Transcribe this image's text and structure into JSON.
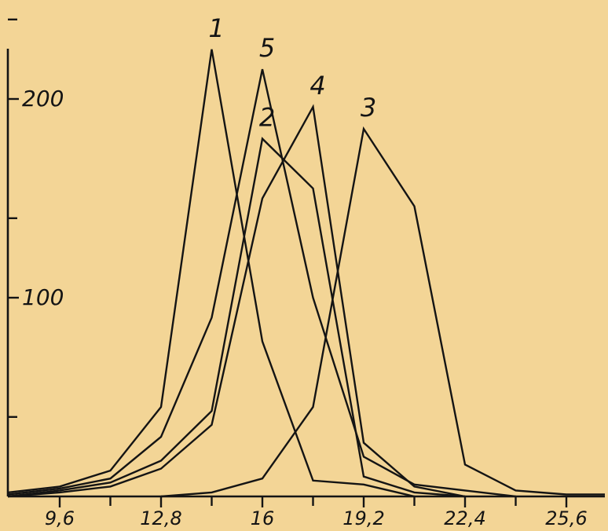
{
  "chart_data": {
    "type": "line",
    "title": "",
    "xlabel": "",
    "ylabel": "",
    "x_tick_labels": [
      "9,6",
      "12,8",
      "16",
      "19,2",
      "22,4",
      "25,6"
    ],
    "x_tick_values": [
      9.6,
      12.8,
      16,
      19.2,
      22.4,
      25.6
    ],
    "x_minor_ticks": [
      11.2,
      14.4,
      17.6,
      20.8,
      24.0
    ],
    "y_tick_labels": [
      "100",
      "200"
    ],
    "y_tick_values": [
      100,
      200
    ],
    "y_minor_ticks": [
      40,
      140,
      240
    ],
    "xlim": [
      8.0,
      26.8
    ],
    "ylim": [
      0,
      240
    ],
    "grid": false,
    "legend": "none",
    "line_color": "#141414",
    "background": "#f3d596",
    "series": [
      {
        "name": "1",
        "x": [
          7.8,
          9.6,
          11.2,
          12.8,
          14.4,
          16.0,
          17.6,
          19.2,
          20.8
        ],
        "y": [
          2,
          5,
          13,
          45,
          225,
          78,
          8,
          6,
          0
        ]
      },
      {
        "name": "5",
        "x": [
          7.8,
          9.6,
          11.2,
          12.8,
          14.4,
          16.0,
          17.6,
          19.2,
          20.8,
          22.4,
          24.0
        ],
        "y": [
          1,
          4,
          9,
          30,
          90,
          215,
          100,
          20,
          6,
          3,
          0
        ]
      },
      {
        "name": "2",
        "x": [
          7.8,
          9.6,
          11.2,
          12.8,
          14.4,
          16.0,
          17.6,
          19.2,
          20.8,
          22.4
        ],
        "y": [
          0,
          3,
          7,
          18,
          43,
          180,
          155,
          10,
          2,
          0
        ]
      },
      {
        "name": "4",
        "x": [
          7.8,
          9.6,
          11.2,
          12.8,
          14.4,
          16.0,
          17.6,
          19.2,
          20.8,
          22.4
        ],
        "y": [
          0,
          2,
          5,
          14,
          36,
          150,
          196,
          27,
          5,
          0
        ]
      },
      {
        "name": "3",
        "x": [
          12.8,
          14.4,
          16.0,
          17.6,
          19.2,
          20.8,
          22.4,
          24.0,
          25.6,
          27.2
        ],
        "y": [
          0,
          2,
          9,
          45,
          185,
          146,
          16,
          3,
          1,
          1
        ]
      }
    ]
  }
}
